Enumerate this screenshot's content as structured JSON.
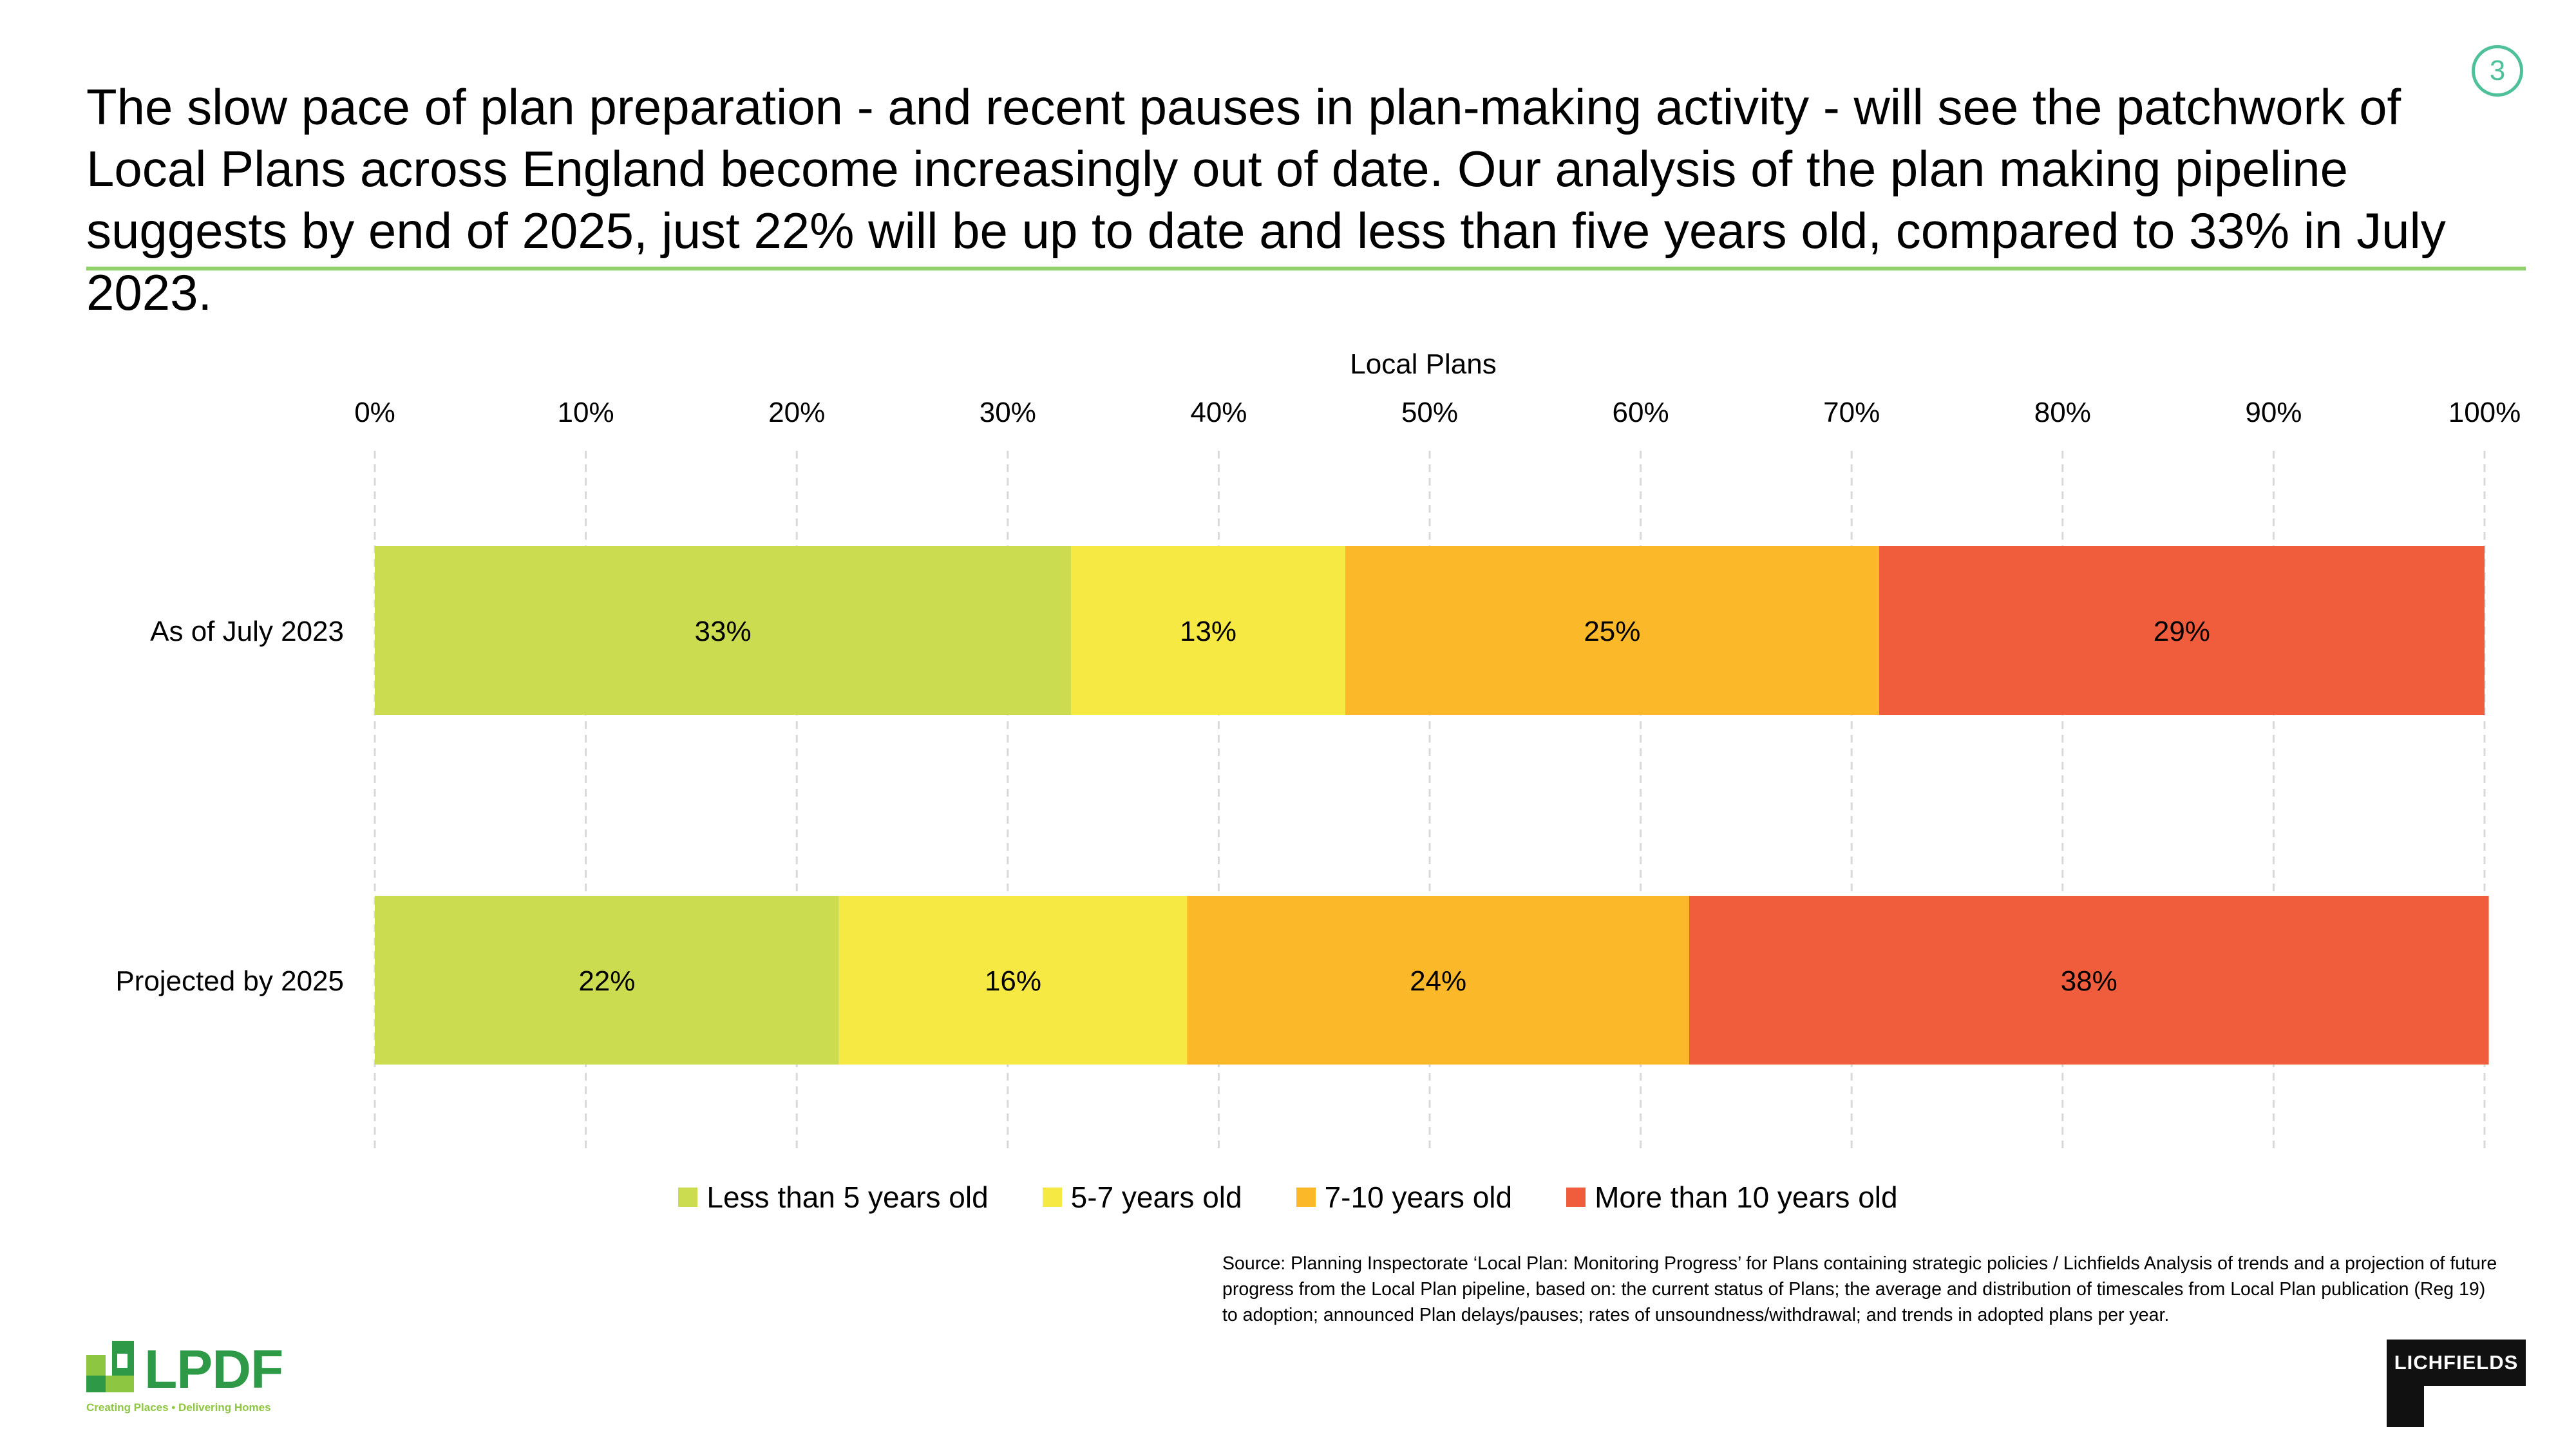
{
  "headline": "The slow pace of plan preparation - and recent pauses in plan-making activity - will see the patchwork of Local Plans across England become increasingly out of date. Our analysis of the plan making pipeline suggests by end of 2025, just 22% will be up to date and less than five years old, compared to 33% in July 2023.",
  "page_number": "3",
  "accent_color": "#8fd16a",
  "chart_data": {
    "type": "bar",
    "orientation": "horizontal",
    "stacked": true,
    "xlabel": "Local Plans",
    "xlim": [
      0,
      100
    ],
    "x_ticks": [
      "0%",
      "10%",
      "20%",
      "30%",
      "40%",
      "50%",
      "60%",
      "70%",
      "80%",
      "90%",
      "100%"
    ],
    "grid": true,
    "legend_position": "bottom",
    "categories": [
      "As of July 2023",
      "Projected by 2025"
    ],
    "series": [
      {
        "name": "Less than 5 years old",
        "color": "#cbdc50",
        "values": [
          33,
          22
        ],
        "labels": [
          "33%",
          "22%"
        ]
      },
      {
        "name": "5-7 years old",
        "color": "#f7e944",
        "values": [
          13,
          16.5
        ],
        "labels": [
          "13%",
          "16%"
        ]
      },
      {
        "name": "7-10 years old",
        "color": "#fbb829",
        "values": [
          25.3,
          23.8
        ],
        "labels": [
          "25%",
          "24%"
        ]
      },
      {
        "name": "More than 10 years old",
        "color": "#f05d3c",
        "values": [
          28.7,
          37.9
        ],
        "labels": [
          "29%",
          "38%"
        ]
      }
    ]
  },
  "source_note": "Source: Planning Inspectorate ‘Local Plan: Monitoring Progress’ for Plans containing strategic policies / Lichfields Analysis of trends and a projection of future progress from the Local Plan pipeline, based on: the current status of Plans; the average and distribution of timescales from Local Plan publication (Reg 19) to adoption; announced Plan delays/pauses; rates of unsoundness/withdrawal; and trends in adopted plans per year.",
  "logos": {
    "lpdf": {
      "name": "LPDF",
      "tagline": "Creating Places • Delivering Homes"
    },
    "lichfields": {
      "name": "LICHFIELDS"
    }
  }
}
